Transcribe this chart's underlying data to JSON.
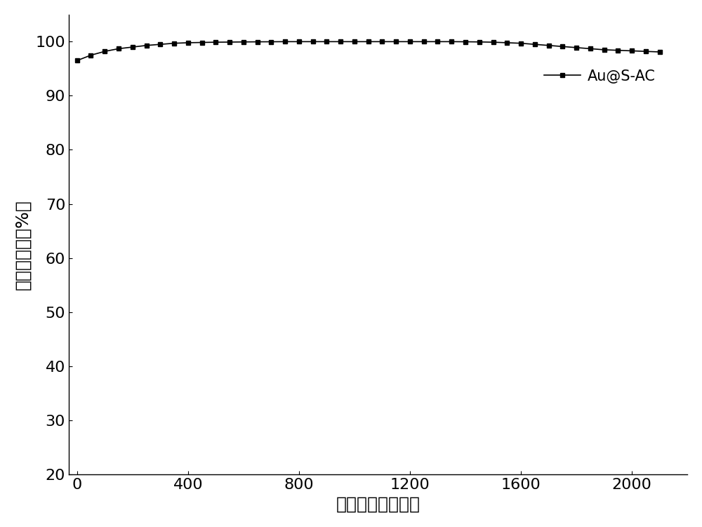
{
  "x_values": [
    0,
    50,
    100,
    150,
    200,
    250,
    300,
    350,
    400,
    450,
    500,
    550,
    600,
    650,
    700,
    750,
    800,
    850,
    900,
    950,
    1000,
    1050,
    1100,
    1150,
    1200,
    1250,
    1300,
    1350,
    1400,
    1450,
    1500,
    1550,
    1600,
    1650,
    1700,
    1750,
    1800,
    1850,
    1900,
    1950,
    2000,
    2050,
    2100
  ],
  "y_values": [
    96.5,
    97.5,
    98.2,
    98.7,
    99.0,
    99.3,
    99.5,
    99.7,
    99.8,
    99.85,
    99.9,
    99.92,
    99.95,
    99.97,
    99.98,
    100.0,
    100.0,
    100.0,
    100.0,
    100.0,
    100.0,
    100.0,
    100.0,
    100.0,
    100.0,
    100.0,
    100.0,
    100.0,
    99.98,
    99.95,
    99.9,
    99.8,
    99.7,
    99.5,
    99.3,
    99.1,
    98.9,
    98.7,
    98.5,
    98.4,
    98.3,
    98.2,
    98.1
  ],
  "xlim": [
    -30,
    2200
  ],
  "ylim": [
    20,
    105
  ],
  "xticks": [
    0,
    400,
    800,
    1200,
    1600,
    2000
  ],
  "yticks": [
    20,
    30,
    40,
    50,
    60,
    70,
    80,
    90,
    100
  ],
  "xlabel": "反应时间（小时）",
  "ylabel": "乙炔转化率（%）",
  "legend_label": "Au@S-AC",
  "line_color": "#000000",
  "marker": "s",
  "markersize": 5,
  "linewidth": 1.2,
  "background_color": "#ffffff",
  "xlabel_fontsize": 18,
  "ylabel_fontsize": 18,
  "tick_fontsize": 16,
  "legend_fontsize": 15
}
